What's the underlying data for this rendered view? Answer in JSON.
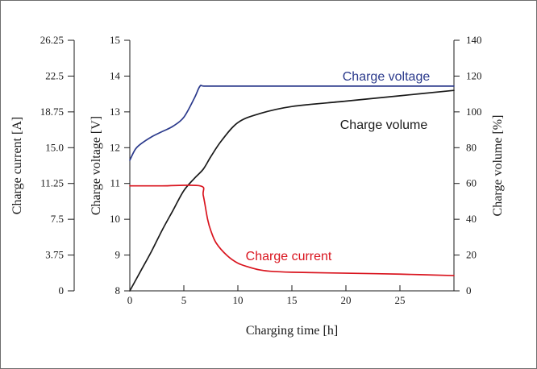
{
  "chart_data": {
    "type": "line",
    "title": "",
    "xlabel": "Charging time [h]",
    "x_ticks": [
      "0",
      "5",
      "10",
      "15",
      "20",
      "25"
    ],
    "xlim": [
      0,
      30
    ],
    "axes": {
      "current": {
        "label": "Charge current [A]",
        "ticks": [
          "0",
          "3.75",
          "7.5",
          "11.25",
          "15.0",
          "18.75",
          "22.5",
          "26.25"
        ],
        "ylim": [
          0,
          26.25
        ]
      },
      "voltage": {
        "label": "Charge voltage [V]",
        "ticks": [
          "8",
          "9",
          "10",
          "11",
          "12",
          "13",
          "14",
          "15"
        ],
        "ylim": [
          8,
          15
        ]
      },
      "volume": {
        "label": "Charge volume [%]",
        "ticks": [
          "0",
          "20",
          "40",
          "60",
          "80",
          "100",
          "120",
          "140"
        ],
        "ylim": [
          0,
          140
        ]
      }
    },
    "series": [
      {
        "name": "Charge voltage",
        "axis": "voltage",
        "color": "#2b3a8c",
        "x": [
          0,
          0.5,
          1,
          2,
          3,
          4,
          5,
          6,
          6.5,
          7,
          10,
          15,
          20,
          25,
          30
        ],
        "y": [
          11.65,
          11.95,
          12.1,
          12.3,
          12.45,
          12.6,
          12.85,
          13.4,
          13.72,
          13.72,
          13.72,
          13.72,
          13.72,
          13.72,
          13.72
        ]
      },
      {
        "name": "Charge volume",
        "axis": "volume",
        "color": "#1a1a1a",
        "x": [
          0,
          1,
          2,
          3,
          4,
          5,
          6,
          6.8,
          7.5,
          8.5,
          10,
          12,
          15,
          20,
          25,
          30
        ],
        "y": [
          0,
          11,
          22,
          34,
          45,
          56,
          63,
          68,
          75,
          84,
          94,
          99,
          103,
          106,
          109,
          112
        ]
      },
      {
        "name": "Charge current",
        "axis": "current",
        "color": "#d9141e",
        "x": [
          0,
          3,
          6.5,
          6.8,
          7.2,
          7.5,
          8,
          9,
          10,
          11,
          12,
          13,
          15,
          20,
          25,
          30
        ],
        "y": [
          11.0,
          11.0,
          11.0,
          10.0,
          7.5,
          6.3,
          5.0,
          3.7,
          2.9,
          2.5,
          2.2,
          2.05,
          1.95,
          1.85,
          1.75,
          1.6
        ]
      }
    ],
    "annotations": [
      "Charge voltage",
      "Charge volume",
      "Charge current"
    ],
    "grid": false,
    "legend": "inline labels"
  }
}
